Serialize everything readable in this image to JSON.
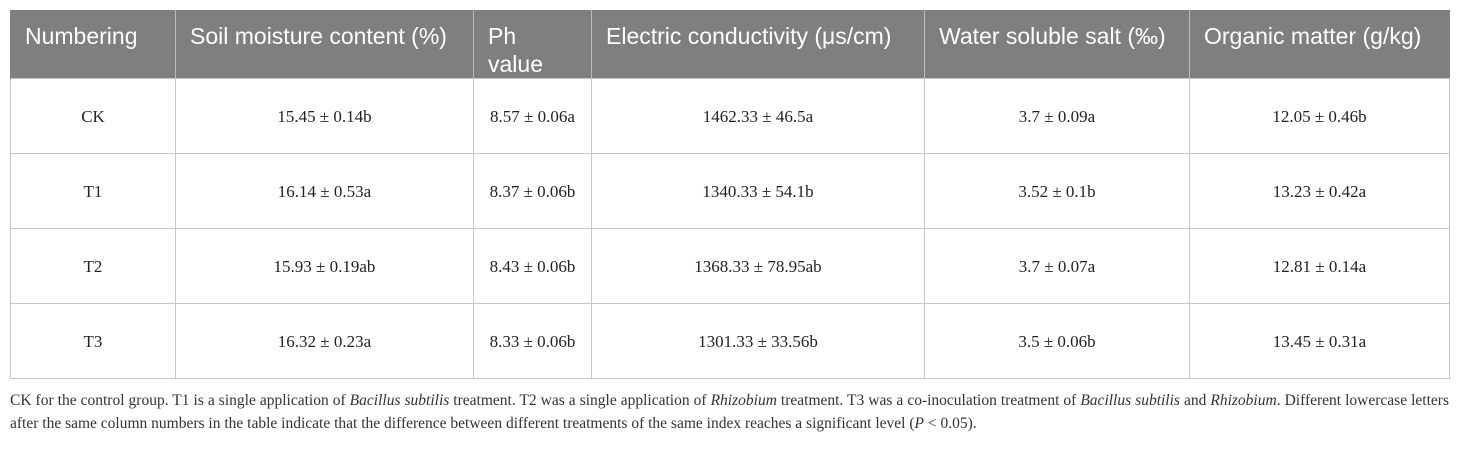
{
  "table": {
    "header": [
      "Numbering",
      "Soil moisture content (%)",
      "Ph value",
      "Electric conductivity (μs/cm)",
      "Water soluble salt (‰)",
      "Organic matter (g/kg)"
    ],
    "rows": [
      [
        "CK",
        "15.45 ± 0.14b",
        "8.57 ± 0.06a",
        "1462.33 ± 46.5a",
        "3.7 ± 0.09a",
        "12.05 ± 0.46b"
      ],
      [
        "T1",
        "16.14 ± 0.53a",
        "8.37 ± 0.06b",
        "1340.33 ± 54.1b",
        "3.52 ± 0.1b",
        "13.23 ± 0.42a"
      ],
      [
        "T2",
        "15.93 ± 0.19ab",
        "8.43 ± 0.06b",
        "1368.33 ± 78.95ab",
        "3.7 ± 0.07a",
        "12.81 ± 0.14a"
      ],
      [
        "T3",
        "16.32 ± 0.23a",
        "8.33 ± 0.06b",
        "1301.33 ± 33.56b",
        "3.5 ± 0.06b",
        "13.45 ± 0.31a"
      ]
    ]
  },
  "footnote": [
    {
      "text": "CK for the control group. T1 is a single application of ",
      "italic": false
    },
    {
      "text": "Bacillus subtilis",
      "italic": true
    },
    {
      "text": " treatment. T2 was a single application of ",
      "italic": false
    },
    {
      "text": "Rhizobium",
      "italic": true
    },
    {
      "text": " treatment. T3 was a co-inoculation treatment of ",
      "italic": false
    },
    {
      "text": "Bacillus subtilis",
      "italic": true
    },
    {
      "text": " and ",
      "italic": false
    },
    {
      "text": "Rhizobium",
      "italic": true
    },
    {
      "text": ". Different lowercase letters after the same column numbers in the table indicate that the difference between different treatments of the same index reaches a significant level (",
      "italic": false
    },
    {
      "text": "P",
      "italic": true
    },
    {
      "text": " < 0.05).",
      "italic": false
    }
  ]
}
